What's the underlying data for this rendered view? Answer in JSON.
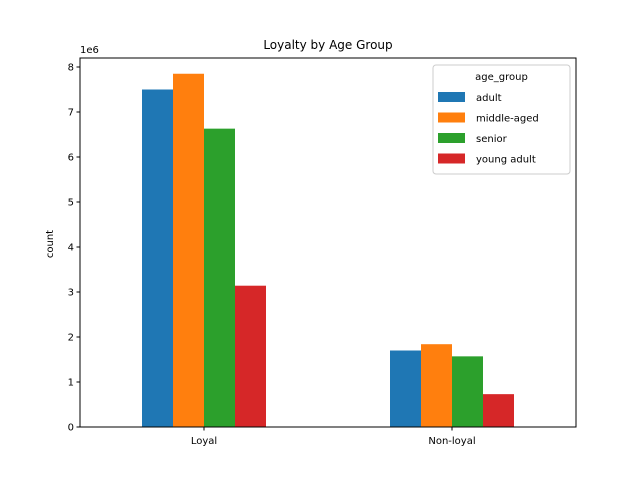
{
  "chart_data": {
    "type": "bar",
    "title": "Loyalty by Age Group",
    "xlabel": "",
    "ylabel": "count",
    "scale_label": "1e6",
    "categories": [
      "Loyal",
      "Non-loyal"
    ],
    "ylim": [
      0,
      8.2
    ],
    "yticks": [
      0,
      1,
      2,
      3,
      4,
      5,
      6,
      7,
      8
    ],
    "ytick_labels": [
      "0",
      "1",
      "2",
      "3",
      "4",
      "5",
      "6",
      "7",
      "8"
    ],
    "legend_title": "age_group",
    "legend_position": "top-right",
    "grid": false,
    "series": [
      {
        "name": "adult",
        "color": "#1f77b4",
        "values": [
          7.5,
          1.7
        ]
      },
      {
        "name": "middle-aged",
        "color": "#ff7f0e",
        "values": [
          7.85,
          1.84
        ]
      },
      {
        "name": "senior",
        "color": "#2ca02c",
        "values": [
          6.63,
          1.57
        ]
      },
      {
        "name": "young adult",
        "color": "#d62728",
        "values": [
          3.14,
          0.73
        ]
      }
    ]
  }
}
